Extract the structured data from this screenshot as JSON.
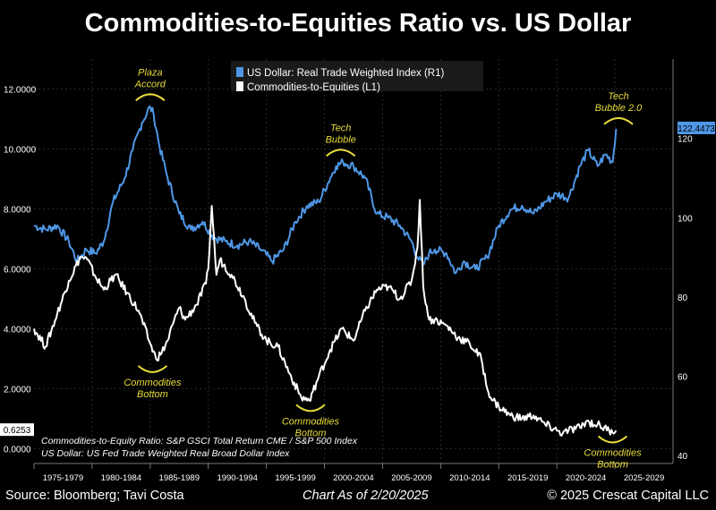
{
  "title": "Commodities-to-Equities Ratio vs. US Dollar",
  "chart_data": {
    "type": "line",
    "x_label_ticks": [
      "1975-1979",
      "1980-1984",
      "1985-1989",
      "1990-1994",
      "1995-1999",
      "2000-2004",
      "2005-2009",
      "2010-2014",
      "2015-2019",
      "2020-2024",
      "2025-2029"
    ],
    "xlim": [
      1975,
      2030
    ],
    "left_axis": {
      "ticks": [
        "0.0000",
        "2.0000",
        "4.0000",
        "6.0000",
        "8.0000",
        "10.0000",
        "12.0000"
      ],
      "ylim": [
        -0.5,
        13.0
      ]
    },
    "right_axis": {
      "ticks": [
        "40",
        "60",
        "80",
        "100",
        "120"
      ],
      "ylim": [
        38,
        140
      ]
    },
    "legend": [
      {
        "label": "US Dollar: Real Trade Weighted Index (R1)",
        "color": "#4f97e6"
      },
      {
        "label": "Commodities-to-Equities (L1)",
        "color": "#ffffff"
      }
    ],
    "series": [
      {
        "name": "US Dollar: Real Trade Weighted Index (R1)",
        "axis": "right",
        "color": "#4f97e6",
        "last_value_label": "122.4473",
        "x": [
          1975.0,
          1976.0,
          1977.0,
          1978.0,
          1978.7,
          1979.5,
          1980.3,
          1981.0,
          1981.8,
          1982.8,
          1983.5,
          1984.3,
          1985.0,
          1985.3,
          1985.8,
          1986.5,
          1987.5,
          1988.5,
          1989.5,
          1990.5,
          1991.5,
          1992.5,
          1993.5,
          1994.5,
          1995.5,
          1996.5,
          1997.5,
          1998.5,
          1999.5,
          2000.5,
          2001.0,
          2001.6,
          2002.5,
          2003.5,
          2004.5,
          2005.5,
          2006.5,
          2007.5,
          2008.0,
          2008.5,
          2009.0,
          2009.5,
          2010.5,
          2011.3,
          2012.0,
          2013.0,
          2014.0,
          2015.0,
          2016.0,
          2017.0,
          2018.0,
          2019.0,
          2020.0,
          2021.0,
          2022.0,
          2022.7,
          2023.5,
          2024.2,
          2024.8,
          2025.1
        ],
        "y": [
          98,
          97,
          98,
          94,
          89,
          92,
          91,
          94,
          104,
          110,
          117,
          124,
          128,
          126,
          118,
          110,
          101,
          97,
          99,
          95,
          94,
          93,
          94,
          92,
          89,
          92,
          99,
          103,
          104,
          110,
          113,
          114,
          113,
          110,
          101,
          100,
          98,
          94,
          90,
          88,
          91,
          92,
          91,
          86,
          89,
          87,
          90,
          98,
          102,
          103,
          101,
          104,
          106,
          105,
          113,
          117,
          113,
          116,
          114,
          122.4
        ]
      },
      {
        "name": "Commodities-to-Equities (L1)",
        "axis": "left",
        "color": "#ffffff",
        "last_value_label": "0.6253",
        "x": [
          1975.0,
          1976.0,
          1977.0,
          1978.0,
          1979.0,
          1979.6,
          1980.2,
          1981.0,
          1982.0,
          1983.0,
          1984.0,
          1985.0,
          1985.5,
          1986.0,
          1986.5,
          1987.0,
          1987.5,
          1988.0,
          1989.0,
          1989.8,
          1990.0,
          1990.3,
          1990.7,
          1991.0,
          1992.0,
          1993.0,
          1994.0,
          1995.0,
          1996.0,
          1997.0,
          1998.0,
          1998.8,
          1999.0,
          1999.5,
          2000.5,
          2001.5,
          2002.5,
          2003.5,
          2004.5,
          2005.5,
          2006.5,
          2007.5,
          2008.0,
          2008.2,
          2008.5,
          2009.0,
          2009.5,
          2010.5,
          2011.5,
          2012.5,
          2013.5,
          2014.0,
          2014.5,
          2015.0,
          2016.0,
          2017.0,
          2018.0,
          2019.0,
          2020.0,
          2020.5,
          2021.0,
          2022.0,
          2022.5,
          2023.5,
          2024.5,
          2025.1
        ],
        "y": [
          4.0,
          3.4,
          4.5,
          5.6,
          6.4,
          6.3,
          5.8,
          5.3,
          5.8,
          5.2,
          4.6,
          3.5,
          3.0,
          3.2,
          3.6,
          4.2,
          4.7,
          4.3,
          4.8,
          5.5,
          6.0,
          8.1,
          5.8,
          6.3,
          5.8,
          5.1,
          4.2,
          3.6,
          3.4,
          2.5,
          1.7,
          1.6,
          1.9,
          2.4,
          3.3,
          4.0,
          3.6,
          4.6,
          5.3,
          5.4,
          5.0,
          5.6,
          6.7,
          8.3,
          5.4,
          4.3,
          4.3,
          4.1,
          3.7,
          3.5,
          3.0,
          2.0,
          1.6,
          1.4,
          1.1,
          1.0,
          1.1,
          0.8,
          0.6,
          0.5,
          0.6,
          0.7,
          0.9,
          0.8,
          0.6,
          0.6
        ]
      }
    ],
    "annotations": [
      {
        "text": "Plaza Accord",
        "x": 1985.0,
        "y": 130,
        "axis": "right",
        "position": "above"
      },
      {
        "text": "Tech Bubble",
        "x": 2001.4,
        "y": 116,
        "axis": "right",
        "position": "above"
      },
      {
        "text": "Tech Bubble 2.0",
        "x": 2025.3,
        "y": 124,
        "axis": "right",
        "position": "above"
      },
      {
        "text": "Commodities Bottom",
        "x": 1985.2,
        "y": 2.7,
        "axis": "left",
        "position": "below"
      },
      {
        "text": "Commodities Bottom",
        "x": 1998.8,
        "y": 1.4,
        "axis": "left",
        "position": "below"
      },
      {
        "text": "Commodities Bottom",
        "x": 2024.8,
        "y": 0.35,
        "axis": "left",
        "position": "below"
      }
    ],
    "notes": [
      "Commodities-to-Equity Ratio: S&P GSCI Total Return CME / S&P 500 Index",
      "US Dollar: US Fed Trade Weighted Real Broad Dollar Index"
    ],
    "grid": true
  },
  "footer": {
    "source": "Source: Bloomberg; Tavi Costa",
    "as_of": "Chart As of 2/20/2025",
    "copyright": "© 2025 Crescat Capital LLC"
  }
}
